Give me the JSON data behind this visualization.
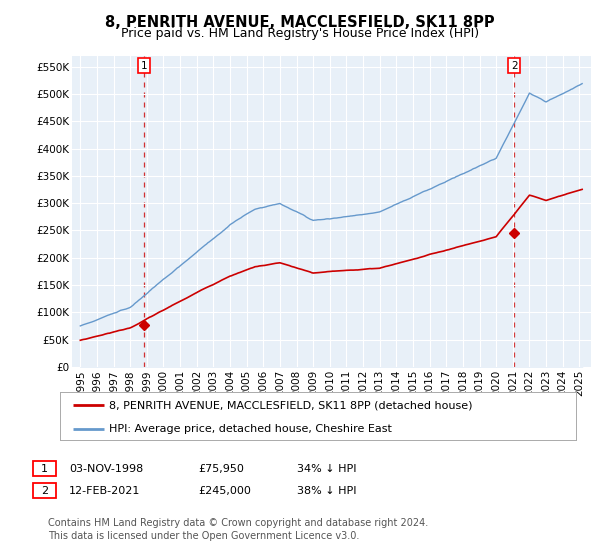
{
  "title": "8, PENRITH AVENUE, MACCLESFIELD, SK11 8PP",
  "subtitle": "Price paid vs. HM Land Registry's House Price Index (HPI)",
  "property_color": "#cc0000",
  "hpi_color": "#6699cc",
  "hpi_fill_color": "#dce9f5",
  "property_label": "8, PENRITH AVENUE, MACCLESFIELD, SK11 8PP (detached house)",
  "hpi_label": "HPI: Average price, detached house, Cheshire East",
  "transaction1_date": "03-NOV-1998",
  "transaction1_price": "£75,950",
  "transaction1_info": "34% ↓ HPI",
  "transaction2_date": "12-FEB-2021",
  "transaction2_price": "£245,000",
  "transaction2_info": "38% ↓ HPI",
  "footer": "Contains HM Land Registry data © Crown copyright and database right 2024.\nThis data is licensed under the Open Government Licence v3.0.",
  "background_color": "#ffffff",
  "plot_bg_color": "#e8f0f8",
  "grid_color": "#ffffff",
  "title_fontsize": 10.5,
  "subtitle_fontsize": 9,
  "tick_fontsize": 7.5,
  "legend_fontsize": 8,
  "table_fontsize": 8,
  "footer_fontsize": 7
}
